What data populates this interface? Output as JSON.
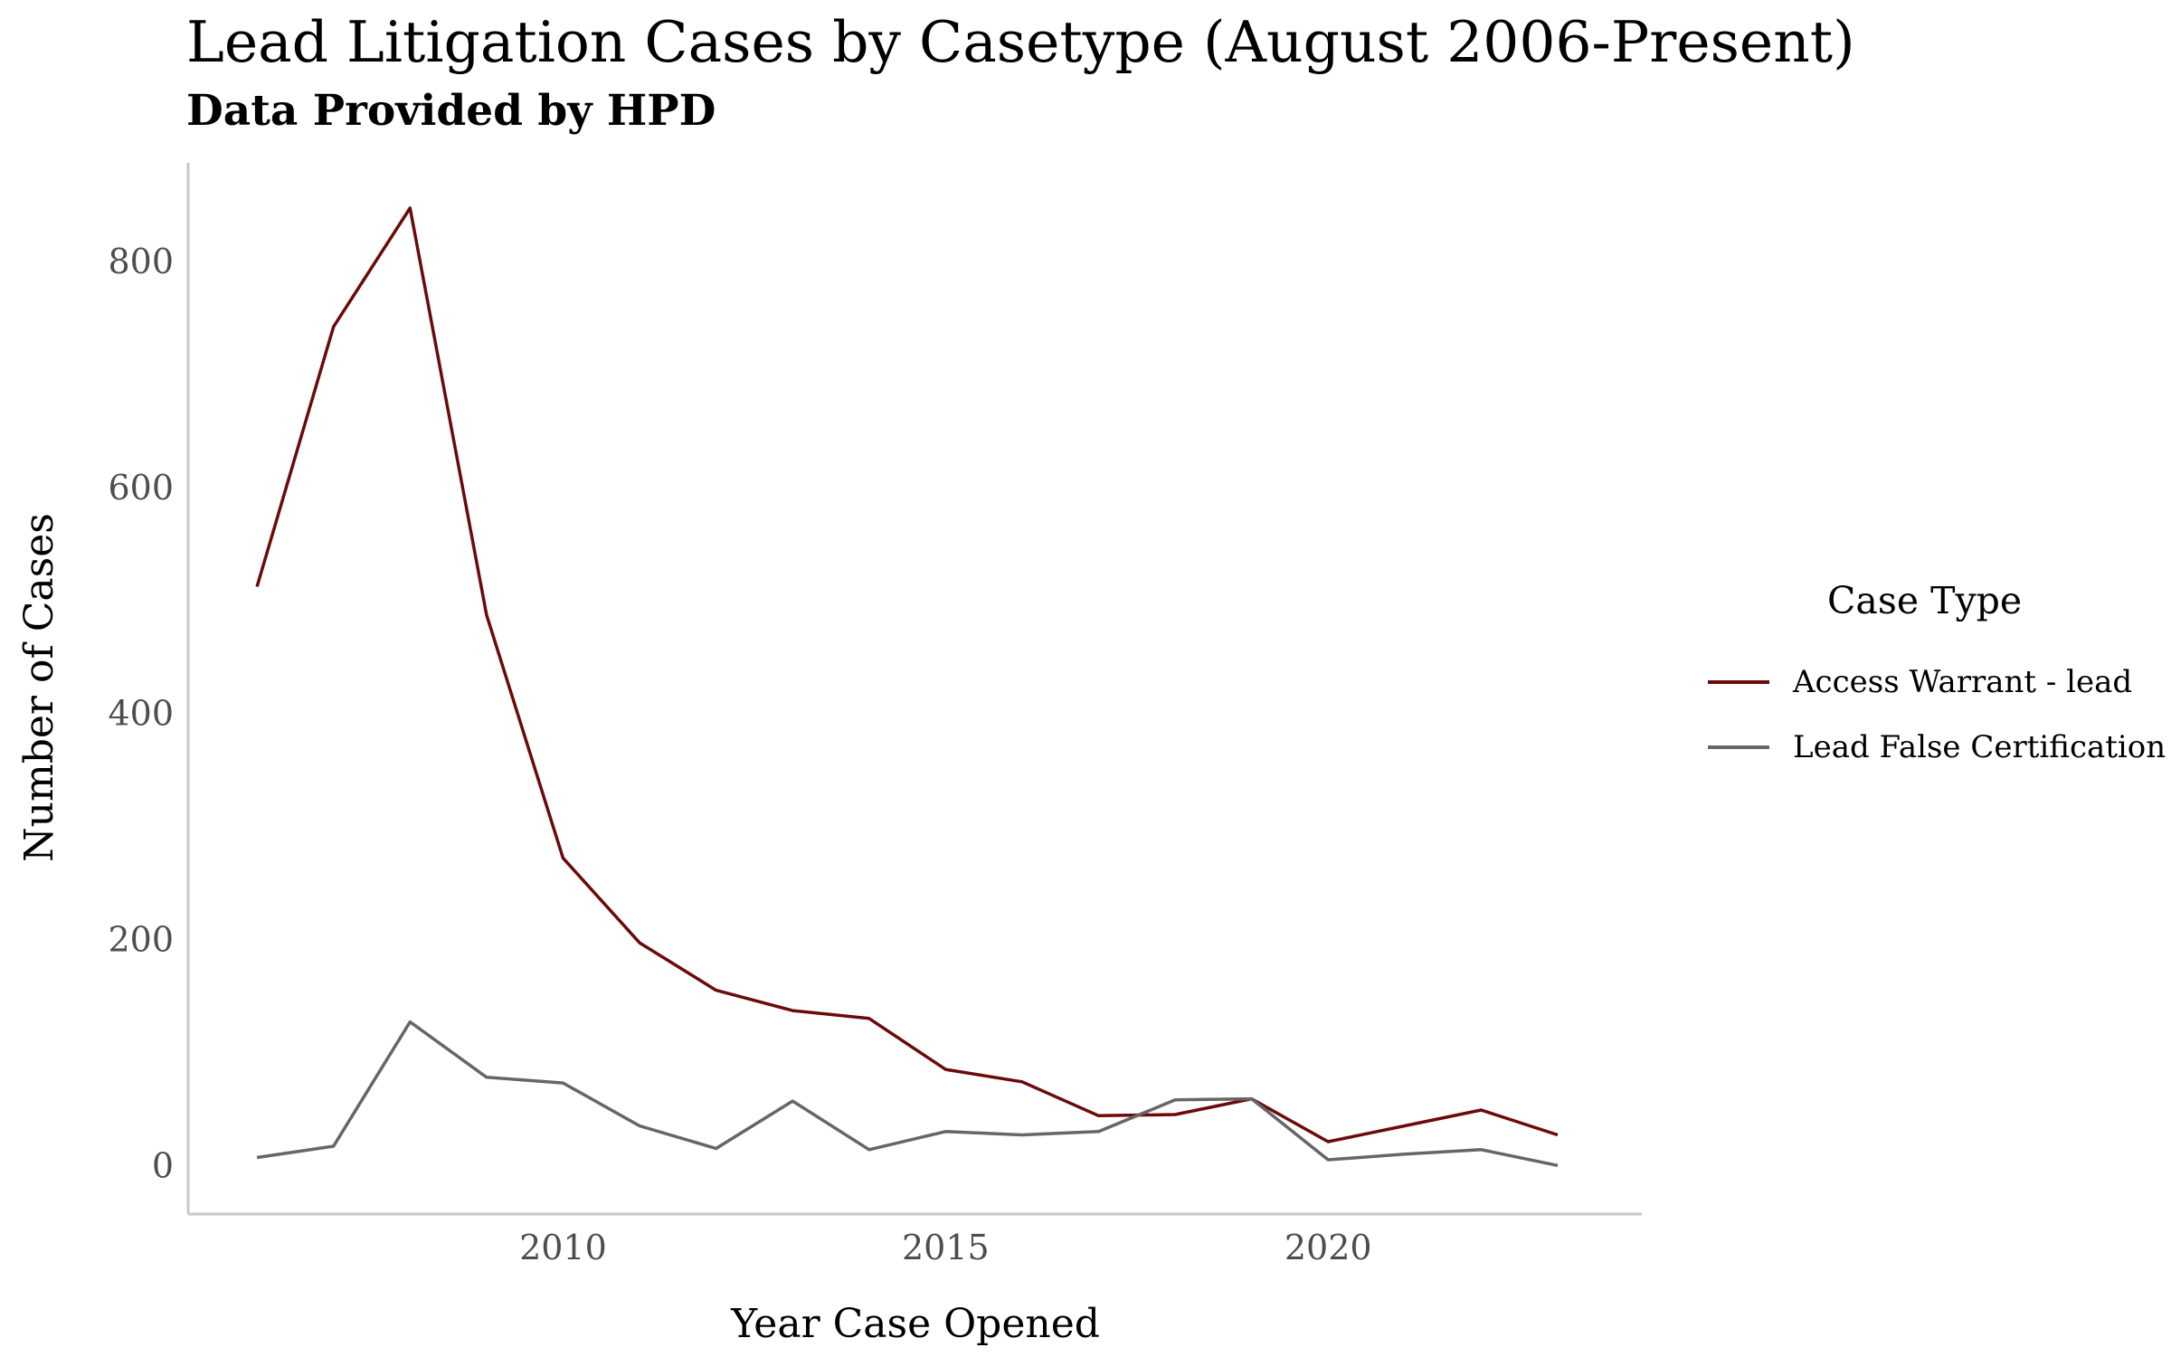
{
  "chart_data": {
    "type": "line",
    "title": "Lead Litigation Cases by Casetype (August 2006-Present)",
    "subtitle": "Data Provided by HPD",
    "xlabel": "Year Case Opened",
    "ylabel": "Number of Cases",
    "xlim": [
      2005.1,
      2024.1
    ],
    "ylim": [
      -40,
      890
    ],
    "xticks": [
      2010,
      2015,
      2020
    ],
    "yticks": [
      0,
      200,
      400,
      600,
      800
    ],
    "grid": false,
    "legend_title": "Case Type",
    "legend_position": "right",
    "series": [
      {
        "name": "Access Warrant - lead",
        "color": "#6b0a0a",
        "x": [
          2006,
          2007,
          2008,
          2009,
          2010,
          2011,
          2012,
          2013,
          2014,
          2015,
          2016,
          2017,
          2018,
          2019,
          2020,
          2021,
          2022,
          2023
        ],
        "values": [
          515,
          745,
          850,
          490,
          275,
          200,
          158,
          140,
          133,
          88,
          77,
          47,
          48,
          62,
          24,
          38,
          52,
          30
        ]
      },
      {
        "name": "Lead False Certification",
        "color": "#666666",
        "x": [
          2006,
          2007,
          2008,
          2009,
          2010,
          2011,
          2012,
          2013,
          2014,
          2015,
          2016,
          2017,
          2018,
          2019,
          2020,
          2021,
          2022,
          2023
        ],
        "values": [
          10,
          20,
          130,
          81,
          76,
          38,
          18,
          60,
          17,
          33,
          30,
          33,
          61,
          62,
          8,
          13,
          17,
          3
        ]
      }
    ]
  }
}
